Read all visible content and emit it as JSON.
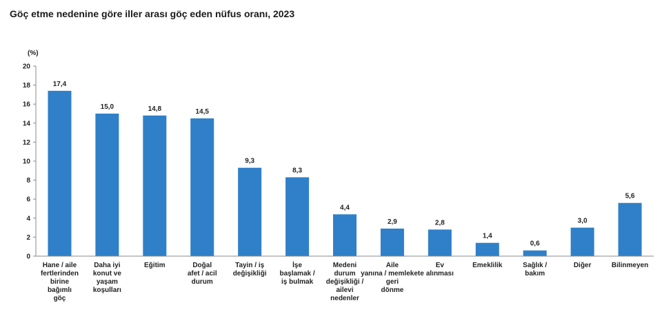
{
  "chart_data": {
    "type": "bar",
    "title": "Göç etme nedenine göre iller arası göç eden nüfus oranı, 2023",
    "ylabel": "(%)",
    "ylim": [
      0,
      20
    ],
    "yticks": [
      0,
      2,
      4,
      6,
      8,
      10,
      12,
      14,
      16,
      18,
      20
    ],
    "grid": false,
    "bar_color": "#2f80c8",
    "categories": [
      [
        "Hane / aile",
        "fertlerinden",
        "birine",
        "bağımlı",
        "göç"
      ],
      [
        "Daha iyi",
        "konut ve",
        "yaşam",
        "koşulları"
      ],
      [
        "Eğitim"
      ],
      [
        "Doğal",
        "afet / acil",
        "durum"
      ],
      [
        "Tayin / iş",
        "değişikliği"
      ],
      [
        "İşe",
        "başlamak /",
        "iş bulmak"
      ],
      [
        "Medeni",
        "durum",
        "değişikliği /",
        "ailevi",
        "nedenler"
      ],
      [
        "Aile",
        "yanına / memlekete",
        "geri",
        "dönme"
      ],
      [
        "Ev",
        "alınması"
      ],
      [
        "Emeklilik"
      ],
      [
        "Sağlık /",
        "bakım"
      ],
      [
        "Diğer"
      ],
      [
        "Bilinmeyen"
      ]
    ],
    "values": [
      17.4,
      15.0,
      14.8,
      14.5,
      9.3,
      8.3,
      4.4,
      2.9,
      2.8,
      1.4,
      0.6,
      3.0,
      5.6
    ],
    "value_labels": [
      "17,4",
      "15,0",
      "14,8",
      "14,5",
      "9,3",
      "8,3",
      "4,4",
      "2,9",
      "2,8",
      "1,4",
      "0,6",
      "3,0",
      "5,6"
    ]
  }
}
